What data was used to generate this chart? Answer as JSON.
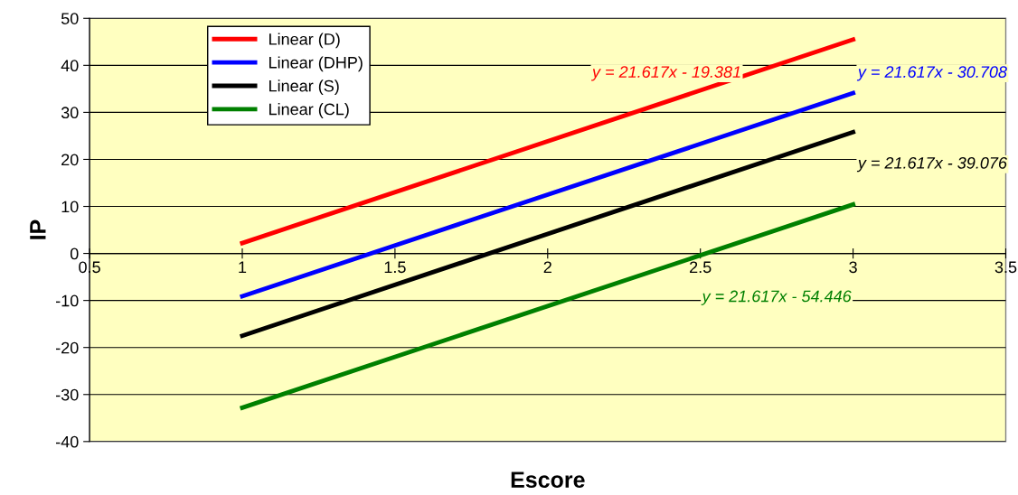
{
  "chart_data": {
    "type": "line",
    "xlabel": "Escore",
    "ylabel": "IP",
    "x": [
      1,
      3
    ],
    "series": [
      {
        "name": "Linear (D)",
        "color": "#ff0000",
        "values": [
          2.2,
          45.5
        ]
      },
      {
        "name": "Linear (DHP)",
        "color": "#0000ff",
        "values": [
          -9.1,
          34.1
        ]
      },
      {
        "name": "Linear (S)",
        "color": "#000000",
        "values": [
          -17.5,
          25.8
        ]
      },
      {
        "name": "Linear (CL)",
        "color": "#008000",
        "values": [
          -32.8,
          10.4
        ]
      }
    ],
    "annotations": [
      "y = 21.617x - 19.381",
      "y = 21.617x - 30.708",
      "y = 21.617x - 39.076",
      "y = 21.617x - 54.446"
    ],
    "xlim": [
      0.5,
      3.5
    ],
    "xticks": [
      0.5,
      1,
      1.5,
      2,
      2.5,
      3,
      3.5
    ],
    "ylim": [
      -40,
      50
    ],
    "yticks": [
      -40,
      -30,
      -20,
      -10,
      0,
      10,
      20,
      30,
      40,
      50
    ],
    "grid": "y",
    "legend": "top left",
    "marker": "none",
    "line_style": "solid"
  }
}
